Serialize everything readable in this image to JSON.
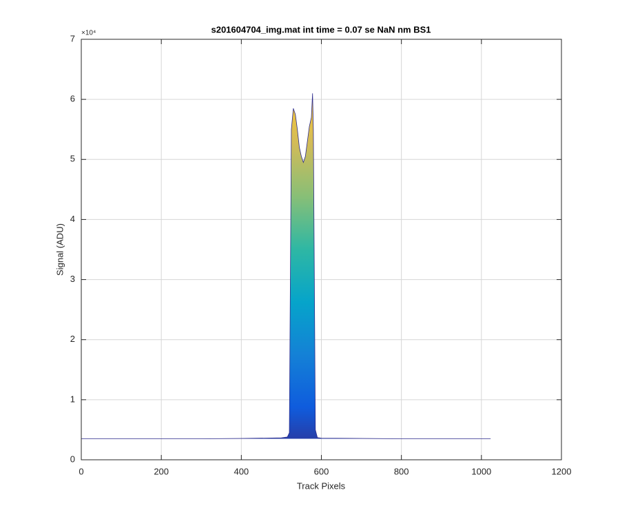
{
  "chart_data": {
    "type": "area",
    "title": "s201604704_img.mat int time = 0.07 se  NaN nm BS1",
    "x_label": "Track Pixels",
    "y_label": "Signal (ADU)",
    "y_exponent": "×10⁴",
    "x": [
      0,
      100,
      200,
      300,
      400,
      500,
      515,
      520,
      525,
      530,
      535,
      540,
      545,
      550,
      555,
      560,
      565,
      570,
      575,
      578,
      580,
      585,
      590,
      600,
      700,
      800,
      900,
      1000,
      1023
    ],
    "values": [
      3500,
      3500,
      3500,
      3500,
      3550,
      3650,
      3800,
      4500,
      55000,
      58500,
      57500,
      55000,
      52000,
      50500,
      49500,
      50500,
      53000,
      55500,
      57000,
      61000,
      55000,
      5000,
      3700,
      3600,
      3550,
      3500,
      3500,
      3500,
      3500
    ],
    "line_color": "#2b2a8c",
    "colormap": [
      "#352a87",
      "#0f5cdd",
      "#1481d6",
      "#06a4ca",
      "#2eb7a4",
      "#87bf77",
      "#d1bb59",
      "#fec832",
      "#f9fb0e"
    ],
    "xlim": [
      0,
      1200
    ],
    "xticks": [
      0,
      200,
      400,
      600,
      800,
      1000,
      1200
    ],
    "ylim": [
      0,
      70000
    ],
    "yticks": [
      {
        "value": 0,
        "label": "0"
      },
      {
        "value": 10000,
        "label": "1"
      },
      {
        "value": 20000,
        "label": "2"
      },
      {
        "value": 30000,
        "label": "3"
      },
      {
        "value": 40000,
        "label": "4"
      },
      {
        "value": 50000,
        "label": "5"
      },
      {
        "value": 60000,
        "label": "6"
      },
      {
        "value": 70000,
        "label": "7"
      }
    ],
    "grid": true
  }
}
